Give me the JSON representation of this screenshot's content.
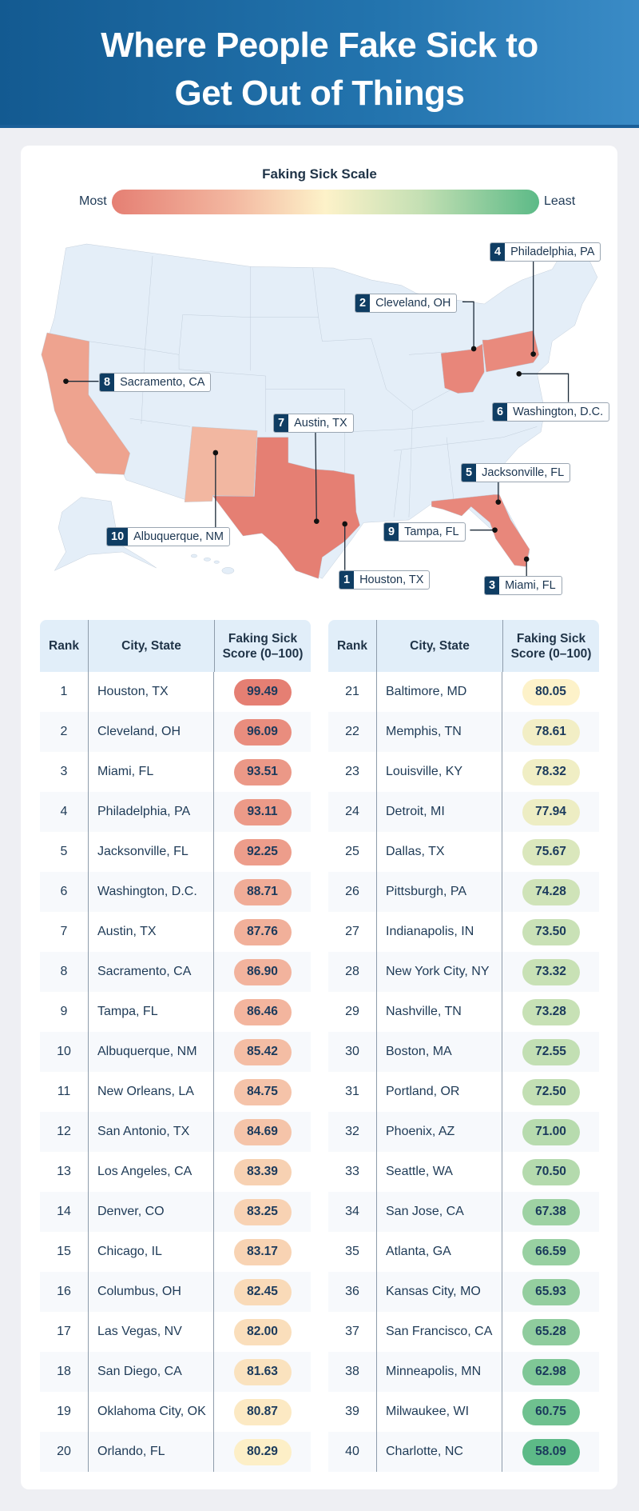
{
  "title_line1": "Where People Fake Sick to",
  "title_line2": "Get Out of Things",
  "scale": {
    "title": "Faking Sick Scale",
    "most_label": "Most",
    "least_label": "Least",
    "colors": [
      "#e57f73",
      "#f3b7a0",
      "#fdf2c9",
      "#c5e0b4",
      "#5cba87"
    ]
  },
  "map_labels": [
    {
      "rank": "1",
      "city": "Houston, TX"
    },
    {
      "rank": "2",
      "city": "Cleveland, OH"
    },
    {
      "rank": "3",
      "city": "Miami, FL"
    },
    {
      "rank": "4",
      "city": "Philadelphia, PA"
    },
    {
      "rank": "5",
      "city": "Jacksonville, FL"
    },
    {
      "rank": "6",
      "city": "Washington, D.C."
    },
    {
      "rank": "7",
      "city": "Austin, TX"
    },
    {
      "rank": "8",
      "city": "Sacramento, CA"
    },
    {
      "rank": "9",
      "city": "Tampa, FL"
    },
    {
      "rank": "10",
      "city": "Albuquerque, NM"
    }
  ],
  "map_state_colors": {
    "TX": "#e57f73",
    "OH": "#e8867a",
    "PA": "#e98a7d",
    "FL": "#e8877b",
    "CA": "#eea38f",
    "NM": "#f2b7a1",
    "other": "#e4eef8",
    "border": "#b9c6d3"
  },
  "chart_data": {
    "type": "table",
    "columns": [
      "Rank",
      "City, State",
      "Faking Sick Score (0–100)"
    ],
    "header_score_line1": "Faking Sick",
    "header_score_line2": "Score (0–100)",
    "rows": [
      [
        "1",
        "Houston, TX",
        99.49
      ],
      [
        "2",
        "Cleveland, OH",
        96.09
      ],
      [
        "3",
        "Miami, FL",
        93.51
      ],
      [
        "4",
        "Philadelphia, PA",
        93.11
      ],
      [
        "5",
        "Jacksonville, FL",
        92.25
      ],
      [
        "6",
        "Washington, D.C.",
        88.71
      ],
      [
        "7",
        "Austin, TX",
        87.76
      ],
      [
        "8",
        "Sacramento, CA",
        86.9
      ],
      [
        "9",
        "Tampa, FL",
        86.46
      ],
      [
        "10",
        "Albuquerque, NM",
        85.42
      ],
      [
        "11",
        "New Orleans, LA",
        84.75
      ],
      [
        "12",
        "San Antonio, TX",
        84.69
      ],
      [
        "13",
        "Los Angeles, CA",
        83.39
      ],
      [
        "14",
        "Denver, CO",
        83.25
      ],
      [
        "15",
        "Chicago, IL",
        83.17
      ],
      [
        "16",
        "Columbus, OH",
        82.45
      ],
      [
        "17",
        "Las Vegas, NV",
        82.0
      ],
      [
        "18",
        "San Diego, CA",
        81.63
      ],
      [
        "19",
        "Oklahoma City, OK",
        80.87
      ],
      [
        "20",
        "Orlando, FL",
        80.29
      ],
      [
        "21",
        "Baltimore, MD",
        80.05
      ],
      [
        "22",
        "Memphis, TN",
        78.61
      ],
      [
        "23",
        "Louisville, KY",
        78.32
      ],
      [
        "24",
        "Detroit, MI",
        77.94
      ],
      [
        "25",
        "Dallas, TX",
        75.67
      ],
      [
        "26",
        "Pittsburgh, PA",
        74.28
      ],
      [
        "27",
        "Indianapolis, IN",
        73.5
      ],
      [
        "28",
        "New York City, NY",
        73.32
      ],
      [
        "29",
        "Nashville, TN",
        73.28
      ],
      [
        "30",
        "Boston, MA",
        72.55
      ],
      [
        "31",
        "Portland, OR",
        72.5
      ],
      [
        "32",
        "Phoenix, AZ",
        71.0
      ],
      [
        "33",
        "Seattle, WA",
        70.5
      ],
      [
        "34",
        "San Jose, CA",
        67.38
      ],
      [
        "35",
        "Atlanta, GA",
        66.59
      ],
      [
        "36",
        "Kansas City, MO",
        65.93
      ],
      [
        "37",
        "San Francisco, CA",
        65.28
      ],
      [
        "38",
        "Minneapolis, MN",
        62.98
      ],
      [
        "39",
        "Milwaukee, WI",
        60.75
      ],
      [
        "40",
        "Charlotte, NC",
        58.09
      ]
    ]
  }
}
